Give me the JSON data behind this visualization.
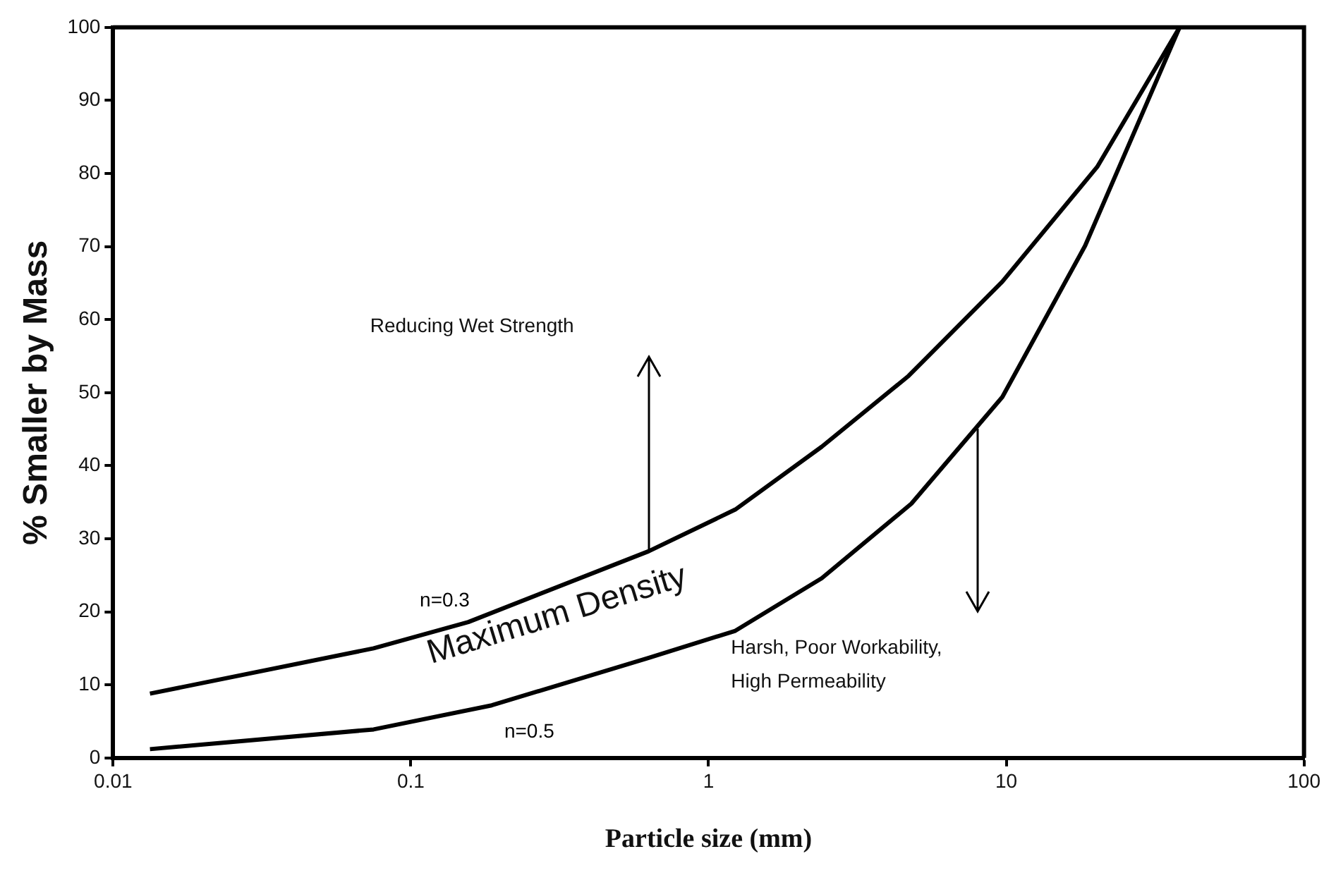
{
  "chart_data": {
    "type": "line",
    "xlabel": "Particle size (mm)",
    "ylabel": "% Smaller by Mass",
    "log": "x",
    "xlim": [
      0.01,
      100
    ],
    "xticks": [
      0.01,
      0.1,
      1,
      10,
      100
    ],
    "ylim": [
      0,
      100
    ],
    "yticks": [
      0,
      10,
      20,
      30,
      40,
      50,
      60,
      70,
      80,
      90,
      100
    ],
    "grid": false,
    "legend": false,
    "marker": "none",
    "line_style": "solid",
    "annotations": [
      "Reducing Wet Strength",
      "Maximum Density",
      "Harsh, Poor Workability,\nHigh Permeability"
    ],
    "series": [
      {
        "name": "n=0.3",
        "color": "#000000",
        "x": [
          0.0133,
          0.075,
          0.156,
          0.63,
          1.23,
          2.4,
          4.7,
          9.7,
          20.2,
          38.2
        ],
        "values": [
          8.8,
          15.0,
          18.6,
          28.3,
          34.0,
          42.6,
          52.3,
          65.2,
          80.9,
          100
        ]
      },
      {
        "name": "n=0.5",
        "color": "#000000",
        "x": [
          0.0133,
          0.075,
          0.187,
          0.63,
          1.23,
          2.4,
          4.8,
          9.7,
          18.4,
          38.2
        ],
        "values": [
          1.2,
          3.9,
          7.2,
          13.7,
          17.4,
          24.6,
          34.8,
          49.4,
          70.1,
          100
        ]
      }
    ]
  }
}
